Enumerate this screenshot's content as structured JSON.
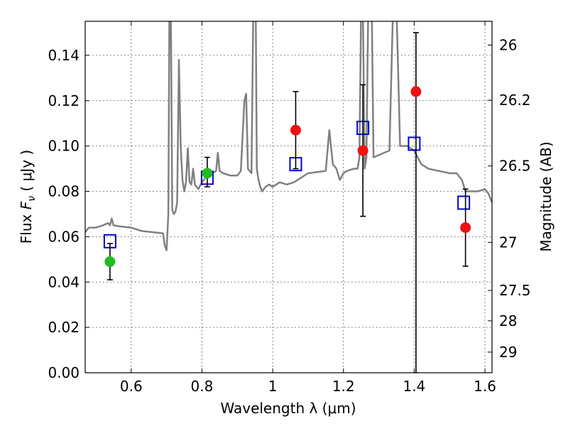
{
  "chart_data": {
    "type": "scatter",
    "xlabel": "Wavelength  λ (μm)",
    "ylabel_prefix": "Flux  ",
    "ylabel_symbol": "F",
    "ylabel_subscript": "ν",
    "ylabel_suffix": "  ( μJy )",
    "y2label": "Magnitude (AB)",
    "xlim": [
      0.47,
      1.62
    ],
    "ylim": [
      0.0,
      0.155
    ],
    "grid": true,
    "x_ticks": [
      0.6,
      0.8,
      1.0,
      1.2,
      1.4,
      1.6
    ],
    "x_tick_labels": [
      "0.6",
      "0.8",
      "1",
      "1.2",
      "1.4",
      "1.6"
    ],
    "y_ticks": [
      0.0,
      0.02,
      0.04,
      0.06,
      0.08,
      0.1,
      0.12,
      0.14
    ],
    "y_tick_labels": [
      "0.00",
      "0.02",
      "0.04",
      "0.06",
      "0.08",
      "0.10",
      "0.12",
      "0.14"
    ],
    "y2_ticks": [
      {
        "label": "26",
        "flux": 0.1445
      },
      {
        "label": "26.2",
        "flux": 0.1202
      },
      {
        "label": "26.5",
        "flux": 0.0912
      },
      {
        "label": "27",
        "flux": 0.0575
      },
      {
        "label": "27.5",
        "flux": 0.0363
      },
      {
        "label": "28",
        "flux": 0.0229
      },
      {
        "label": "29",
        "flux": 0.0091
      }
    ],
    "series": [
      {
        "name": "SED model",
        "kind": "line",
        "color": "#808080",
        "points": [
          [
            0.47,
            0.062
          ],
          [
            0.48,
            0.064
          ],
          [
            0.5,
            0.064
          ],
          [
            0.52,
            0.065
          ],
          [
            0.535,
            0.066
          ],
          [
            0.54,
            0.065
          ],
          [
            0.545,
            0.068
          ],
          [
            0.55,
            0.065
          ],
          [
            0.57,
            0.0645
          ],
          [
            0.6,
            0.064
          ],
          [
            0.63,
            0.0625
          ],
          [
            0.66,
            0.062
          ],
          [
            0.69,
            0.0615
          ],
          [
            0.695,
            0.056
          ],
          [
            0.7,
            0.054
          ],
          [
            0.705,
            0.07
          ],
          [
            0.708,
            0.16
          ],
          [
            0.712,
            0.16
          ],
          [
            0.716,
            0.072
          ],
          [
            0.72,
            0.07
          ],
          [
            0.725,
            0.071
          ],
          [
            0.73,
            0.075
          ],
          [
            0.735,
            0.138
          ],
          [
            0.74,
            0.1
          ],
          [
            0.745,
            0.085
          ],
          [
            0.75,
            0.08
          ],
          [
            0.755,
            0.084
          ],
          [
            0.76,
            0.099
          ],
          [
            0.765,
            0.084
          ],
          [
            0.77,
            0.083
          ],
          [
            0.775,
            0.09
          ],
          [
            0.78,
            0.083
          ],
          [
            0.79,
            0.081
          ],
          [
            0.8,
            0.084
          ],
          [
            0.81,
            0.086
          ],
          [
            0.82,
            0.087
          ],
          [
            0.83,
            0.088
          ],
          [
            0.84,
            0.089
          ],
          [
            0.845,
            0.097
          ],
          [
            0.85,
            0.089
          ],
          [
            0.86,
            0.088
          ],
          [
            0.88,
            0.087
          ],
          [
            0.9,
            0.087
          ],
          [
            0.91,
            0.089
          ],
          [
            0.92,
            0.12
          ],
          [
            0.925,
            0.123
          ],
          [
            0.93,
            0.09
          ],
          [
            0.94,
            0.088
          ],
          [
            0.945,
            0.16
          ],
          [
            0.952,
            0.16
          ],
          [
            0.955,
            0.09
          ],
          [
            0.96,
            0.085
          ],
          [
            0.965,
            0.082
          ],
          [
            0.97,
            0.08
          ],
          [
            0.98,
            0.082
          ],
          [
            0.99,
            0.083
          ],
          [
            1.0,
            0.082
          ],
          [
            1.02,
            0.084
          ],
          [
            1.04,
            0.083
          ],
          [
            1.06,
            0.084
          ],
          [
            1.08,
            0.086
          ],
          [
            1.1,
            0.088
          ],
          [
            1.15,
            0.089
          ],
          [
            1.16,
            0.107
          ],
          [
            1.17,
            0.092
          ],
          [
            1.18,
            0.09
          ],
          [
            1.19,
            0.085
          ],
          [
            1.2,
            0.088
          ],
          [
            1.21,
            0.089
          ],
          [
            1.23,
            0.09
          ],
          [
            1.24,
            0.09
          ],
          [
            1.245,
            0.095
          ],
          [
            1.25,
            0.16
          ],
          [
            1.255,
            0.16
          ],
          [
            1.26,
            0.09
          ],
          [
            1.265,
            0.095
          ],
          [
            1.27,
            0.16
          ],
          [
            1.28,
            0.16
          ],
          [
            1.285,
            0.095
          ],
          [
            1.3,
            0.096
          ],
          [
            1.33,
            0.098
          ],
          [
            1.34,
            0.16
          ],
          [
            1.35,
            0.16
          ],
          [
            1.36,
            0.1
          ],
          [
            1.38,
            0.1
          ],
          [
            1.4,
            0.098
          ],
          [
            1.42,
            0.092
          ],
          [
            1.44,
            0.09
          ],
          [
            1.47,
            0.089
          ],
          [
            1.5,
            0.088
          ],
          [
            1.52,
            0.088
          ],
          [
            1.535,
            0.085
          ],
          [
            1.545,
            0.08
          ],
          [
            1.56,
            0.08
          ],
          [
            1.58,
            0.08
          ],
          [
            1.6,
            0.081
          ],
          [
            1.61,
            0.079
          ],
          [
            1.62,
            0.075
          ]
        ]
      },
      {
        "name": "Model photometry",
        "kind": "open-square",
        "color": "#0000cc",
        "points": [
          [
            0.54,
            0.058
          ],
          [
            0.815,
            0.086
          ],
          [
            1.065,
            0.092
          ],
          [
            1.255,
            0.108
          ],
          [
            1.4,
            0.101
          ],
          [
            1.54,
            0.075
          ]
        ]
      },
      {
        "name": "Observed (green)",
        "kind": "filled-circle",
        "color": "#22bb22",
        "points": [
          {
            "x": 0.54,
            "y": 0.049,
            "ylo": 0.041,
            "yhi": 0.057
          },
          {
            "x": 0.815,
            "y": 0.088,
            "ylo": 0.082,
            "yhi": 0.095
          }
        ]
      },
      {
        "name": "Observed (red)",
        "kind": "filled-circle",
        "color": "#ee1111",
        "points": [
          {
            "x": 1.065,
            "y": 0.107,
            "ylo": 0.09,
            "yhi": 0.124
          },
          {
            "x": 1.255,
            "y": 0.098,
            "ylo": 0.069,
            "yhi": 0.127
          },
          {
            "x": 1.405,
            "y": 0.124,
            "ylo": 0.0,
            "yhi": 0.15
          },
          {
            "x": 1.545,
            "y": 0.064,
            "ylo": 0.047,
            "yhi": 0.081
          }
        ]
      }
    ]
  }
}
